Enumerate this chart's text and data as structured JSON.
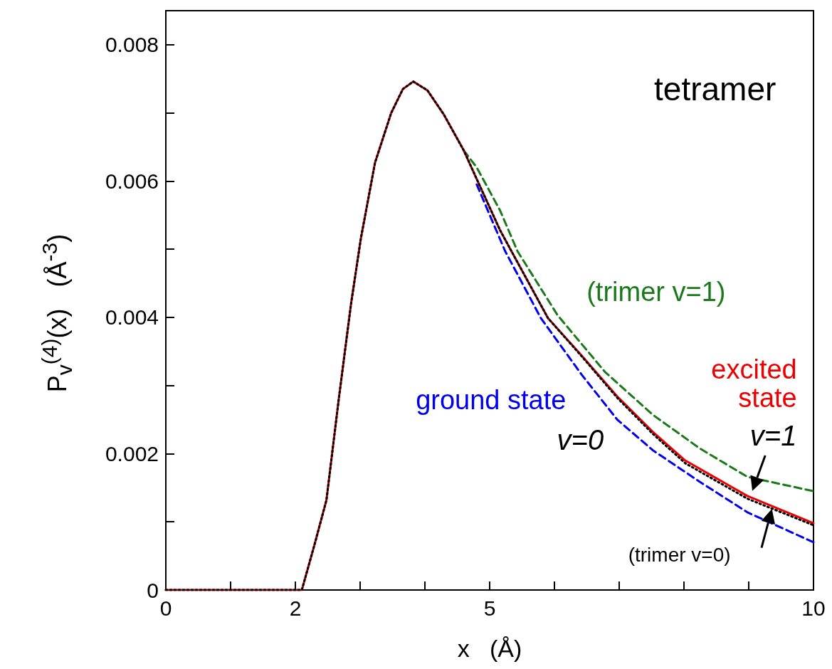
{
  "chart_data": {
    "type": "line",
    "title": "tetramer",
    "xlabel": "x   (Å)",
    "ylabel": "P$_{v}$$^{(4)}$(x)   (Å$^{-3}$)",
    "annotations": [
      "v=0",
      "v=1"
    ],
    "xlim": [
      0,
      10
    ],
    "xticks": [
      0,
      {
        "value": 1,
        "label": null
      },
      2,
      {
        "value": 3,
        "label": null
      },
      {
        "value": 4,
        "label": null
      },
      5,
      {
        "value": 6,
        "label": null
      },
      {
        "value": 7,
        "label": null
      },
      {
        "value": 8,
        "label": null
      },
      {
        "value": 9,
        "label": null
      },
      10
    ],
    "ylim": [
      0,
      0.0085
    ],
    "yticks": [
      0,
      {
        "value": 0.001,
        "label": null
      },
      0.002,
      {
        "value": 0.003,
        "label": null
      },
      0.004,
      {
        "value": 0.005,
        "label": null
      },
      0.006,
      {
        "value": 0.007,
        "label": null
      },
      0.008
    ],
    "grid": false,
    "legend": false,
    "marker": "none",
    "series": [
      {
        "name": "(trimer v=1)",
        "color": "#1a7a1a",
        "line_style": "dashed",
        "x": [
          4.6,
          4.8,
          5.16,
          5.43,
          6.05,
          6.78,
          7.52,
          8.24,
          8.98,
          10
        ],
        "values": [
          0.00645,
          0.0062,
          0.00557,
          0.00497,
          0.00403,
          0.0032,
          0.00257,
          0.00208,
          0.00166,
          0.00145
        ]
      },
      {
        "name": "ground state",
        "color": "#0000ee",
        "line_style": "dashed",
        "x": [
          4.8,
          5.24,
          5.79,
          6.42,
          6.97,
          7.52,
          8.24,
          8.98,
          10
        ],
        "values": [
          0.00595,
          0.00497,
          0.00399,
          0.00316,
          0.0025,
          0.00205,
          0.00159,
          0.00114,
          0.0007
        ]
      },
      {
        "name": "excited state",
        "color": "#ee0000",
        "line_style": "solid",
        "x": [
          0,
          1,
          1.9,
          2.1,
          2.3,
          2.48,
          2.67,
          2.86,
          3.01,
          3.23,
          3.48,
          3.66,
          3.82,
          4.04,
          4.29,
          4.6,
          4.8,
          5.16,
          5.32,
          5.9,
          6.42,
          6.97,
          7.52,
          8.02,
          8.98,
          10
        ],
        "values": [
          0,
          0,
          0,
          0,
          0.00068,
          0.00132,
          0.0028,
          0.0042,
          0.00515,
          0.00627,
          0.007,
          0.00735,
          0.00746,
          0.00733,
          0.00698,
          0.00645,
          0.00603,
          0.00528,
          0.005,
          0.00399,
          0.00344,
          0.00284,
          0.00232,
          0.0019,
          0.00138,
          0.00098
        ]
      },
      {
        "name": "(trimer v=0)",
        "color": "#000000",
        "line_style": "dotted",
        "x": [
          0,
          1,
          1.9,
          2.1,
          2.3,
          2.48,
          2.67,
          2.86,
          3.01,
          3.23,
          3.48,
          3.66,
          3.82,
          4.04,
          4.29,
          4.6,
          4.8,
          5.16,
          5.32,
          5.9,
          6.42,
          6.97,
          7.52,
          8.02,
          8.98,
          10
        ],
        "values": [
          0,
          0,
          0,
          0,
          0.00068,
          0.00132,
          0.0028,
          0.0042,
          0.00515,
          0.00627,
          0.007,
          0.00735,
          0.00746,
          0.00733,
          0.00698,
          0.00645,
          0.00603,
          0.00528,
          0.005,
          0.00399,
          0.00343,
          0.00282,
          0.00229,
          0.00186,
          0.00134,
          0.00095
        ]
      }
    ]
  }
}
